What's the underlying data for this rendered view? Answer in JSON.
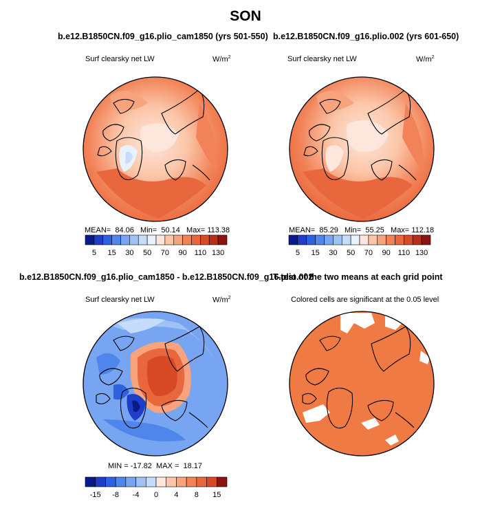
{
  "page_title": "SON",
  "chart_data": [
    {
      "type": "heatmap",
      "projection": "north-polar-stereographic",
      "title": "b.e12.B1850CN.f09_g16.plio_cam1850 (yrs 501-550)",
      "subtitle": "Surf clearsky net LW",
      "unit": "W/m",
      "unit_sup": "2",
      "stats": {
        "mean_label": "MEAN=",
        "mean": "84.06",
        "min_label": "Min=",
        "min": "50.14",
        "max_label": "Max=",
        "max": "113.38"
      },
      "colorbar": {
        "levels": [
          0,
          5,
          10,
          15,
          20,
          30,
          40,
          50,
          60,
          70,
          80,
          90,
          100,
          110,
          120,
          130
        ],
        "labels": [
          "5",
          "15",
          "30",
          "50",
          "70",
          "90",
          "110",
          "130"
        ],
        "colors": [
          "#0a1a8a",
          "#1e3ec8",
          "#2f62e0",
          "#4f86ec",
          "#77a5f1",
          "#9fc2f5",
          "#c5dcfa",
          "#e9f1fc",
          "#fde7dc",
          "#fbc6a8",
          "#f7a47e",
          "#f28257",
          "#e9673c",
          "#d84a26",
          "#b82e18",
          "#8c1310"
        ]
      }
    },
    {
      "type": "heatmap",
      "projection": "north-polar-stereographic",
      "title": "b.e12.B1850CN.f09_g16.plio.002 (yrs 601-650)",
      "subtitle": "Surf clearsky net LW",
      "unit": "W/m",
      "unit_sup": "2",
      "stats": {
        "mean_label": "MEAN=",
        "mean": "85.29",
        "min_label": "Min=",
        "min": "55.25",
        "max_label": "Max=",
        "max": "112.18"
      },
      "colorbar": {
        "levels": [
          0,
          5,
          10,
          15,
          20,
          30,
          40,
          50,
          60,
          70,
          80,
          90,
          100,
          110,
          120,
          130
        ],
        "labels": [
          "5",
          "15",
          "30",
          "50",
          "70",
          "90",
          "110",
          "130"
        ],
        "colors": [
          "#0a1a8a",
          "#1e3ec8",
          "#2f62e0",
          "#4f86ec",
          "#77a5f1",
          "#9fc2f5",
          "#c5dcfa",
          "#e9f1fc",
          "#fde7dc",
          "#fbc6a8",
          "#f7a47e",
          "#f28257",
          "#e9673c",
          "#d84a26",
          "#b82e18",
          "#8c1310"
        ]
      }
    },
    {
      "type": "heatmap",
      "projection": "north-polar-stereographic",
      "title": "b.e12.B1850CN.f09_g16.plio_cam1850 - b.e12.B1850CN.f09_g16.plio.002",
      "subtitle": "Surf clearsky net LW",
      "unit": "W/m",
      "unit_sup": "2",
      "stats": {
        "min_label": "MIN =",
        "min": "-17.82",
        "max_label": "MAX =",
        "max": "18.17"
      },
      "colorbar": {
        "levels": [
          -20,
          -15,
          -12,
          -8,
          -6,
          -4,
          -2,
          0,
          2,
          4,
          6,
          8,
          12,
          15,
          20
        ],
        "labels": [
          "-15",
          "-8",
          "-4",
          "0",
          "4",
          "8",
          "15"
        ],
        "colors": [
          "#0a1a8a",
          "#1e3ec8",
          "#2f62e0",
          "#4f86ec",
          "#77a5f1",
          "#9fc2f5",
          "#c5dcfa",
          "#fde7dc",
          "#fbc6a8",
          "#f7a47e",
          "#f28257",
          "#e9673c",
          "#d84a26",
          "#8c1310"
        ]
      }
    },
    {
      "type": "heatmap",
      "projection": "north-polar-stereographic",
      "title": "T-test of the two means at each grid point",
      "subtitle": "Colored cells are significant at the 0.05 level",
      "significant_color": "#f07a44"
    }
  ]
}
